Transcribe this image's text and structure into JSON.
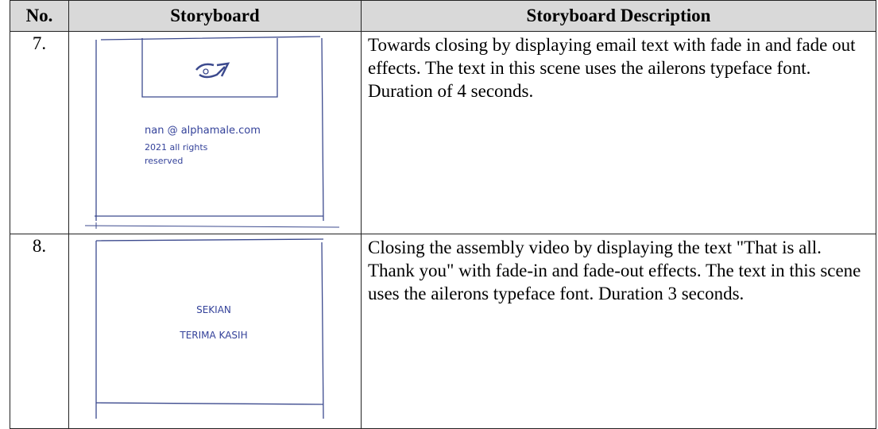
{
  "table": {
    "header": [
      "No.",
      "Storyboard",
      "Storyboard Description"
    ],
    "rows": [
      {
        "number": "7.",
        "sketch": [
          "nan @ alphamale.com",
          "2021 all rights",
          "reserved"
        ],
        "description": "Towards closing by displaying email text with fade in and fade out effects. The text in this scene uses the ailerons typeface font. Duration of 4 seconds."
      },
      {
        "number": "8.",
        "sketch": [
          "SEKIAN",
          "TERIMA KASIH"
        ],
        "description": "Closing the assembly video by displaying the text \"That is all. Thank you\" with fade-in and fade-out effects. The text in this scene uses the ailerons typeface font. Duration 3 seconds."
      }
    ]
  }
}
